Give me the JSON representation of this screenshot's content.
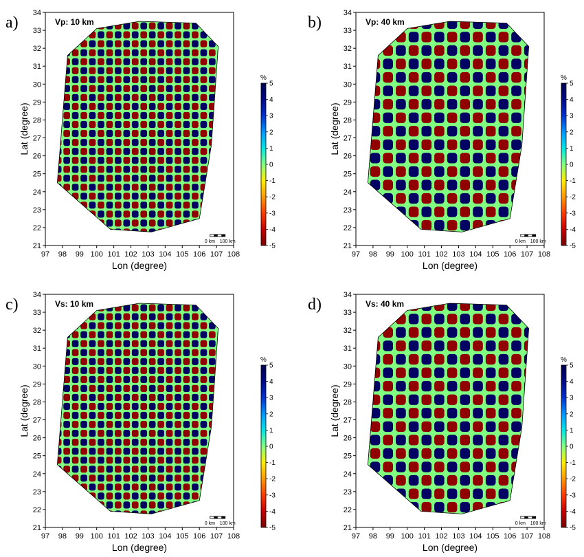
{
  "chart_data": [
    {
      "type": "heatmap",
      "panel_label": "a)",
      "title": "Vp: 10 km",
      "xlabel": "Lon (degree)",
      "ylabel": "Lat (degree)",
      "xlim": [
        97,
        108
      ],
      "ylim": [
        21,
        34
      ],
      "xticks": [
        97,
        98,
        99,
        100,
        101,
        102,
        103,
        104,
        105,
        106,
        107,
        108
      ],
      "yticks": [
        21,
        22,
        23,
        24,
        25,
        26,
        27,
        28,
        29,
        30,
        31,
        32,
        33,
        34
      ],
      "checker_size_deg": 0.5,
      "colorbar": {
        "unit": "%",
        "range": [
          -5,
          5
        ],
        "ticks": [
          5,
          4,
          3,
          2,
          1,
          0,
          -1,
          -2,
          -3,
          -4,
          -5
        ]
      },
      "scalebar": {
        "labels": [
          "0 km",
          "100 km"
        ]
      }
    },
    {
      "type": "heatmap",
      "panel_label": "b)",
      "title": "Vp: 40 km",
      "xlabel": "Lon (degree)",
      "ylabel": "Lat (degree)",
      "xlim": [
        97,
        108
      ],
      "ylim": [
        21,
        34
      ],
      "xticks": [
        97,
        98,
        99,
        100,
        101,
        102,
        103,
        104,
        105,
        106,
        107,
        108
      ],
      "yticks": [
        21,
        22,
        23,
        24,
        25,
        26,
        27,
        28,
        29,
        30,
        31,
        32,
        33,
        34
      ],
      "checker_size_deg": 0.75,
      "colorbar": {
        "unit": "%",
        "range": [
          -5,
          5
        ],
        "ticks": [
          5,
          4,
          3,
          2,
          1,
          0,
          -1,
          -2,
          -3,
          -4,
          -5
        ]
      },
      "scalebar": {
        "labels": [
          "0 km",
          "100 km"
        ]
      }
    },
    {
      "type": "heatmap",
      "panel_label": "c)",
      "title": "Vs: 10 km",
      "xlabel": "Lon (degree)",
      "ylabel": "Lat (degree)",
      "xlim": [
        97,
        108
      ],
      "ylim": [
        21,
        34
      ],
      "xticks": [
        97,
        98,
        99,
        100,
        101,
        102,
        103,
        104,
        105,
        106,
        107,
        108
      ],
      "yticks": [
        21,
        22,
        23,
        24,
        25,
        26,
        27,
        28,
        29,
        30,
        31,
        32,
        33,
        34
      ],
      "checker_size_deg": 0.5,
      "colorbar": {
        "unit": "%",
        "range": [
          -5,
          5
        ],
        "ticks": [
          5,
          4,
          3,
          2,
          1,
          0,
          -1,
          -2,
          -3,
          -4,
          -5
        ]
      },
      "scalebar": {
        "labels": [
          "0 km",
          "100 km"
        ]
      }
    },
    {
      "type": "heatmap",
      "panel_label": "d)",
      "title": "Vs: 40 km",
      "xlabel": "Lon (degree)",
      "ylabel": "Lat (degree)",
      "xlim": [
        97,
        108
      ],
      "ylim": [
        21,
        34
      ],
      "xticks": [
        97,
        98,
        99,
        100,
        101,
        102,
        103,
        104,
        105,
        106,
        107,
        108
      ],
      "yticks": [
        21,
        22,
        23,
        24,
        25,
        26,
        27,
        28,
        29,
        30,
        31,
        32,
        33,
        34
      ],
      "checker_size_deg": 0.75,
      "colorbar": {
        "unit": "%",
        "range": [
          -5,
          5
        ],
        "ticks": [
          5,
          4,
          3,
          2,
          1,
          0,
          -1,
          -2,
          -3,
          -4,
          -5
        ]
      },
      "scalebar": {
        "labels": [
          "0 km",
          "100 km"
        ]
      }
    }
  ],
  "study_area_outline": [
    [
      97.7,
      24.5
    ],
    [
      98.3,
      31.6
    ],
    [
      100.0,
      33.1
    ],
    [
      102.5,
      33.5
    ],
    [
      105.8,
      33.4
    ],
    [
      107.1,
      32.1
    ],
    [
      106.7,
      26.6
    ],
    [
      106.0,
      22.5
    ],
    [
      103.2,
      21.75
    ],
    [
      100.8,
      21.9
    ]
  ],
  "colors": {
    "cmap": [
      "#7a0000",
      "#c80000",
      "#ff3c00",
      "#ff9a00",
      "#ffee00",
      "#80ff80",
      "#00e6e6",
      "#0096ff",
      "#0030d0",
      "#000a88",
      "#000050"
    ],
    "outline": "#000000"
  }
}
